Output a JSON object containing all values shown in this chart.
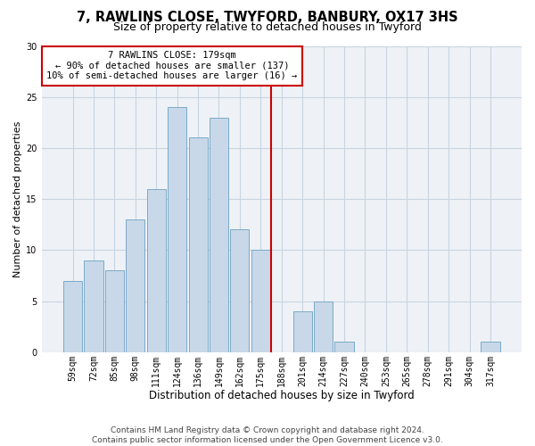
{
  "title": "7, RAWLINS CLOSE, TWYFORD, BANBURY, OX17 3HS",
  "subtitle": "Size of property relative to detached houses in Twyford",
  "xlabel": "Distribution of detached houses by size in Twyford",
  "ylabel": "Number of detached properties",
  "bar_labels": [
    "59sqm",
    "72sqm",
    "85sqm",
    "98sqm",
    "111sqm",
    "124sqm",
    "136sqm",
    "149sqm",
    "162sqm",
    "175sqm",
    "188sqm",
    "201sqm",
    "214sqm",
    "227sqm",
    "240sqm",
    "253sqm",
    "265sqm",
    "278sqm",
    "291sqm",
    "304sqm",
    "317sqm"
  ],
  "bar_values": [
    7,
    9,
    8,
    13,
    16,
    24,
    21,
    23,
    12,
    10,
    0,
    4,
    5,
    1,
    0,
    0,
    0,
    0,
    0,
    0,
    1
  ],
  "bar_color": "#c8d8e8",
  "bar_edgecolor": "#7aaac8",
  "vline_x": 9.5,
  "vline_color": "#cc0000",
  "annotation_text": "7 RAWLINS CLOSE: 179sqm\n← 90% of detached houses are smaller (137)\n10% of semi-detached houses are larger (16) →",
  "annotation_box_edgecolor": "#cc0000",
  "annotation_box_facecolor": "#ffffff",
  "ylim": [
    0,
    30
  ],
  "yticks": [
    0,
    5,
    10,
    15,
    20,
    25,
    30
  ],
  "grid_color": "#c8d4e0",
  "background_color": "#eef2f7",
  "footer_text": "Contains HM Land Registry data © Crown copyright and database right 2024.\nContains public sector information licensed under the Open Government Licence v3.0.",
  "title_fontsize": 10.5,
  "subtitle_fontsize": 9,
  "xlabel_fontsize": 8.5,
  "ylabel_fontsize": 8,
  "tick_fontsize": 7,
  "footer_fontsize": 6.5,
  "annot_fontsize": 7.5
}
